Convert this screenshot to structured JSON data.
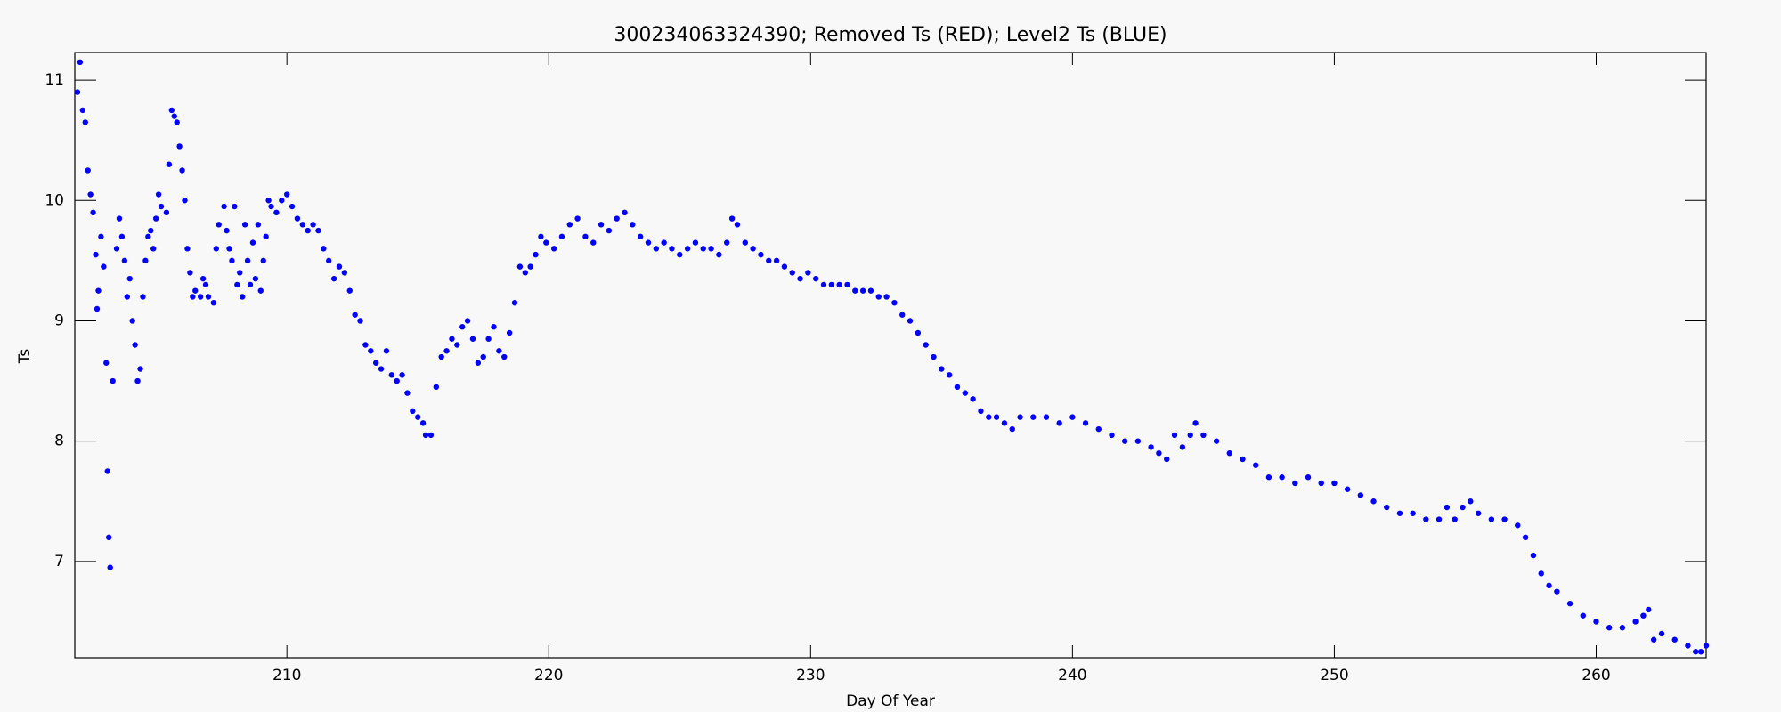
{
  "chart_data": {
    "type": "scatter",
    "title": "300234063324390; Removed Ts (RED); Level2 Ts (BLUE)",
    "x_label": "Day Of Year",
    "y_label": "Ts",
    "xlim": [
      201.9,
      264.2
    ],
    "ylim": [
      6.2,
      11.23
    ],
    "xticks": [
      210,
      220,
      230,
      240,
      250,
      260
    ],
    "yticks": [
      7,
      8,
      9,
      10,
      11
    ],
    "series": [
      {
        "name": "Level2 Ts",
        "color": "#0000ff",
        "x": [
          202.0,
          202.1,
          202.2,
          202.3,
          202.4,
          202.5,
          202.6,
          202.7,
          202.75,
          202.8,
          202.9,
          203.0,
          203.1,
          203.15,
          203.2,
          203.25,
          203.35,
          203.5,
          203.6,
          203.7,
          203.8,
          203.9,
          204.0,
          204.1,
          204.2,
          204.3,
          204.4,
          204.5,
          204.6,
          204.7,
          204.8,
          204.9,
          205.0,
          205.1,
          205.2,
          205.4,
          205.5,
          205.6,
          205.7,
          205.8,
          205.9,
          206.0,
          206.1,
          206.2,
          206.3,
          206.4,
          206.5,
          206.7,
          206.8,
          206.9,
          207.0,
          207.2,
          207.3,
          207.4,
          207.6,
          207.7,
          207.8,
          207.9,
          208.0,
          208.1,
          208.2,
          208.3,
          208.4,
          208.5,
          208.6,
          208.7,
          208.8,
          208.9,
          209.0,
          209.1,
          209.2,
          209.3,
          209.4,
          209.6,
          209.8,
          210.0,
          210.2,
          210.4,
          210.6,
          210.8,
          211.0,
          211.2,
          211.4,
          211.6,
          211.8,
          212.0,
          212.2,
          212.4,
          212.6,
          212.8,
          213.0,
          213.2,
          213.4,
          213.6,
          213.8,
          214.0,
          214.2,
          214.4,
          214.6,
          214.8,
          215.0,
          215.2,
          215.3,
          215.5,
          215.7,
          215.9,
          216.1,
          216.3,
          216.5,
          216.7,
          216.9,
          217.1,
          217.3,
          217.5,
          217.7,
          217.9,
          218.1,
          218.3,
          218.5,
          218.7,
          218.9,
          219.1,
          219.3,
          219.5,
          219.7,
          219.9,
          220.2,
          220.5,
          220.8,
          221.1,
          221.4,
          221.7,
          222.0,
          222.3,
          222.6,
          222.9,
          223.2,
          223.5,
          223.8,
          224.1,
          224.4,
          224.7,
          225.0,
          225.3,
          225.6,
          225.9,
          226.2,
          226.5,
          226.8,
          227.0,
          227.2,
          227.5,
          227.8,
          228.1,
          228.4,
          228.7,
          229.0,
          229.3,
          229.6,
          229.9,
          230.2,
          230.5,
          230.8,
          231.1,
          231.4,
          231.7,
          232.0,
          232.3,
          232.6,
          232.9,
          233.2,
          233.5,
          233.8,
          234.1,
          234.4,
          234.7,
          235.0,
          235.3,
          235.6,
          235.9,
          236.2,
          236.5,
          236.8,
          237.1,
          237.4,
          237.7,
          238.0,
          238.5,
          239.0,
          239.5,
          240.0,
          240.5,
          241.0,
          241.5,
          242.0,
          242.5,
          243.0,
          243.3,
          243.6,
          243.9,
          244.2,
          244.5,
          244.7,
          245.0,
          245.5,
          246.0,
          246.5,
          247.0,
          247.5,
          248.0,
          248.5,
          249.0,
          249.5,
          250.0,
          250.5,
          251.0,
          251.5,
          252.0,
          252.5,
          253.0,
          253.5,
          254.0,
          254.3,
          254.6,
          254.9,
          255.2,
          255.5,
          256.0,
          256.5,
          257.0,
          257.3,
          257.6,
          257.9,
          258.2,
          258.5,
          259.0,
          259.5,
          260.0,
          260.5,
          261.0,
          261.5,
          261.8,
          262.0,
          262.2,
          262.5,
          263.0,
          263.5,
          263.8,
          264.0,
          264.2
        ],
        "values": [
          10.9,
          11.15,
          10.75,
          10.65,
          10.25,
          10.05,
          9.9,
          9.55,
          9.1,
          9.25,
          9.7,
          9.45,
          8.65,
          7.75,
          7.2,
          6.95,
          8.5,
          9.6,
          9.85,
          9.7,
          9.5,
          9.2,
          9.35,
          9.0,
          8.8,
          8.5,
          8.6,
          9.2,
          9.5,
          9.7,
          9.75,
          9.6,
          9.85,
          10.05,
          9.95,
          9.9,
          10.3,
          10.75,
          10.7,
          10.65,
          10.45,
          10.25,
          10.0,
          9.6,
          9.4,
          9.2,
          9.25,
          9.2,
          9.35,
          9.3,
          9.2,
          9.15,
          9.6,
          9.8,
          9.95,
          9.75,
          9.6,
          9.5,
          9.95,
          9.3,
          9.4,
          9.2,
          9.8,
          9.5,
          9.3,
          9.65,
          9.35,
          9.8,
          9.25,
          9.5,
          9.7,
          10.0,
          9.95,
          9.9,
          10.0,
          10.05,
          9.95,
          9.85,
          9.8,
          9.75,
          9.8,
          9.75,
          9.6,
          9.5,
          9.35,
          9.45,
          9.4,
          9.25,
          9.05,
          9.0,
          8.8,
          8.75,
          8.65,
          8.6,
          8.75,
          8.55,
          8.5,
          8.55,
          8.4,
          8.25,
          8.2,
          8.15,
          8.05,
          8.05,
          8.45,
          8.7,
          8.75,
          8.85,
          8.8,
          8.95,
          9.0,
          8.85,
          8.65,
          8.7,
          8.85,
          8.95,
          8.75,
          8.7,
          8.9,
          9.15,
          9.45,
          9.4,
          9.45,
          9.55,
          9.7,
          9.65,
          9.6,
          9.7,
          9.8,
          9.85,
          9.7,
          9.65,
          9.8,
          9.75,
          9.85,
          9.9,
          9.8,
          9.7,
          9.65,
          9.6,
          9.65,
          9.6,
          9.55,
          9.6,
          9.65,
          9.6,
          9.6,
          9.55,
          9.65,
          9.85,
          9.8,
          9.65,
          9.6,
          9.55,
          9.5,
          9.5,
          9.45,
          9.4,
          9.35,
          9.4,
          9.35,
          9.3,
          9.3,
          9.3,
          9.3,
          9.25,
          9.25,
          9.25,
          9.2,
          9.2,
          9.15,
          9.05,
          9.0,
          8.9,
          8.8,
          8.7,
          8.6,
          8.55,
          8.45,
          8.4,
          8.35,
          8.25,
          8.2,
          8.2,
          8.15,
          8.1,
          8.2,
          8.2,
          8.2,
          8.15,
          8.2,
          8.15,
          8.1,
          8.05,
          8.0,
          8.0,
          7.95,
          7.9,
          7.85,
          8.05,
          7.95,
          8.05,
          8.15,
          8.05,
          8.0,
          7.9,
          7.85,
          7.8,
          7.7,
          7.7,
          7.65,
          7.7,
          7.65,
          7.65,
          7.6,
          7.55,
          7.5,
          7.45,
          7.4,
          7.4,
          7.35,
          7.35,
          7.45,
          7.35,
          7.45,
          7.5,
          7.4,
          7.35,
          7.35,
          7.3,
          7.2,
          7.05,
          6.9,
          6.8,
          6.75,
          6.65,
          6.55,
          6.5,
          6.45,
          6.45,
          6.5,
          6.55,
          6.6,
          6.35,
          6.4,
          6.35,
          6.3,
          6.25,
          6.25,
          6.3
        ]
      }
    ]
  }
}
